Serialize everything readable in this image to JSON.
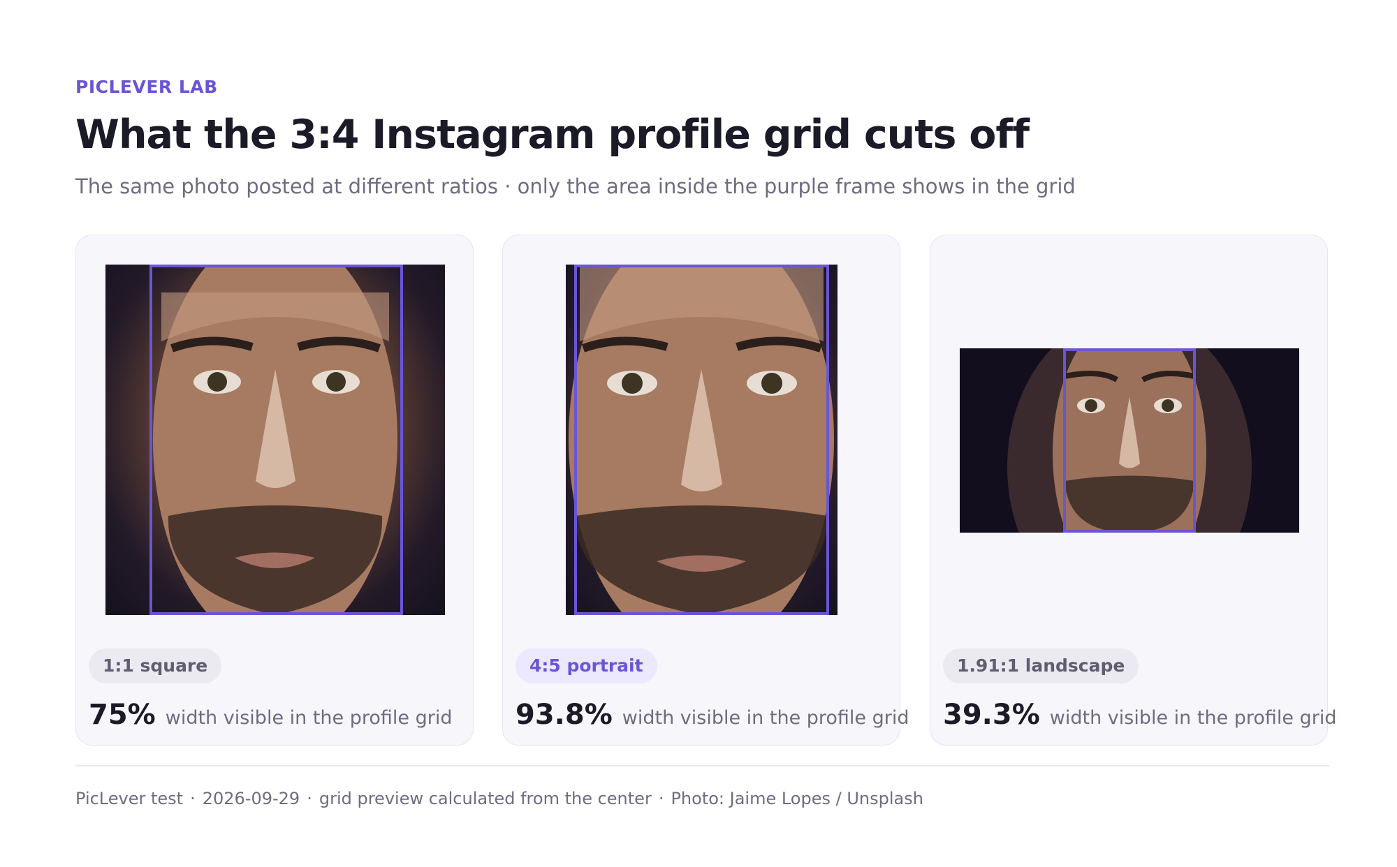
{
  "header": {
    "eyebrow": "PICLEVER LAB",
    "title": "What the 3:4 Instagram profile grid cuts off",
    "subtitle": "The same photo posted at different ratios · only the area inside the purple frame shows in the grid"
  },
  "cards": [
    {
      "ratio_label": "1:1 square",
      "visible_percent": "75%",
      "visible_fraction": 0.75,
      "description": "width visible in the profile grid",
      "highlighted": false
    },
    {
      "ratio_label": "4:5 portrait",
      "visible_percent": "93.8%",
      "visible_fraction": 0.938,
      "description": "width visible in the profile grid",
      "highlighted": true
    },
    {
      "ratio_label": "1.91:1 landscape",
      "visible_percent": "39.3%",
      "visible_fraction": 0.393,
      "description": "width visible in the profile grid",
      "highlighted": false
    }
  ],
  "footer": {
    "items": [
      "PicLever test",
      "2026-09-29",
      "grid preview calculated from the center",
      "Photo: Jaime Lopes / Unsplash"
    ]
  },
  "colors": {
    "accent": "#6a55d6",
    "card_background": "#f6f6fb",
    "text_dark": "#1b1a27",
    "text_muted": "#6e6c80"
  }
}
